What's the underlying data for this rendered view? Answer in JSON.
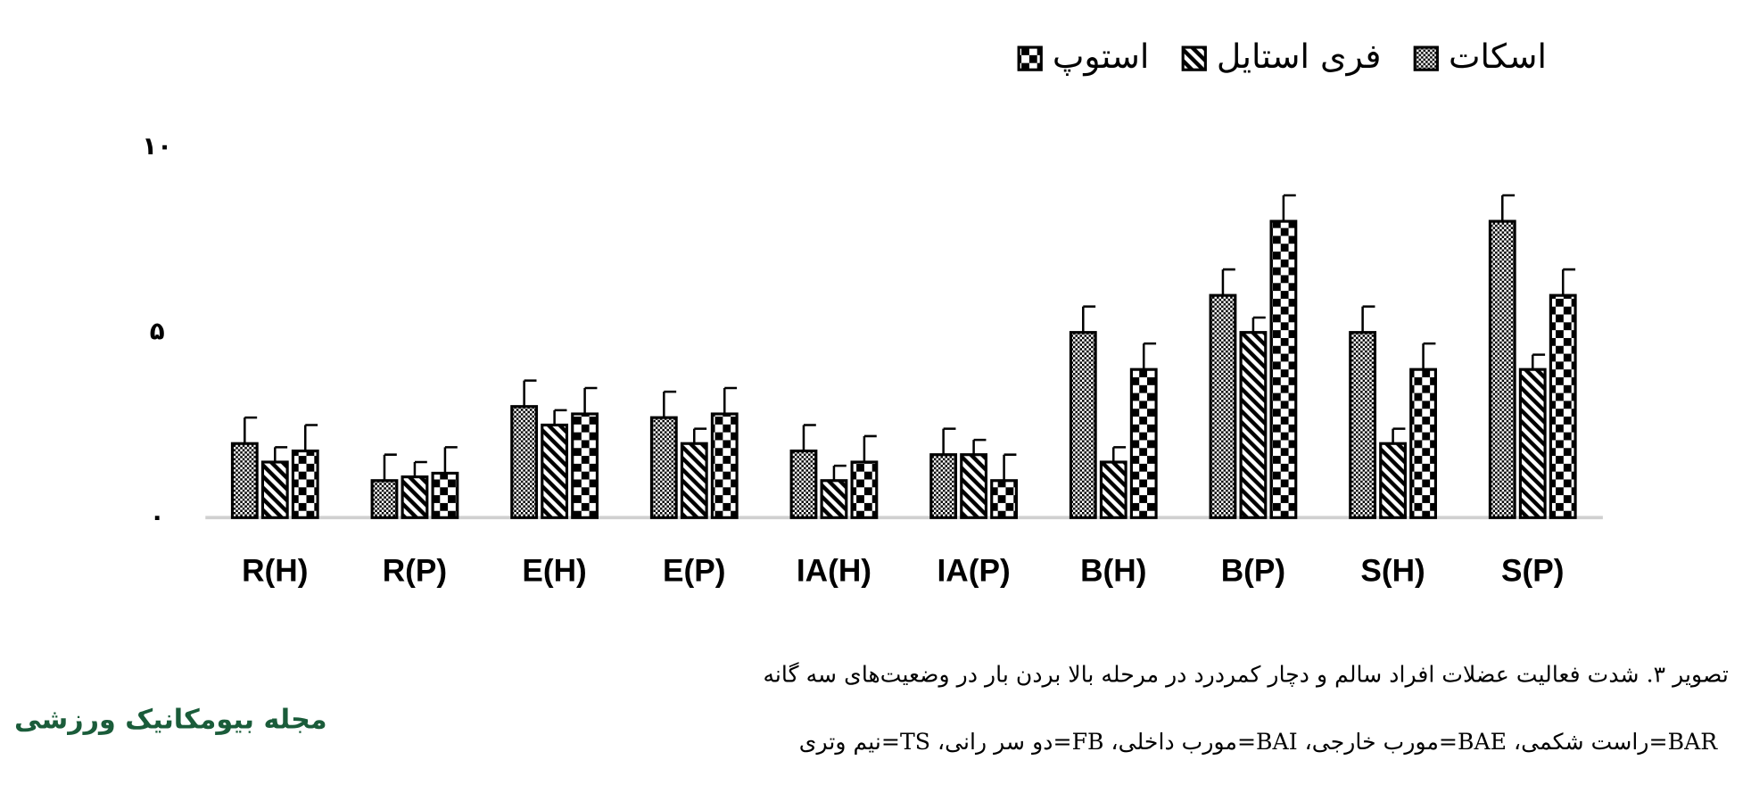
{
  "chart_data": {
    "type": "bar",
    "categories": [
      "R(H)",
      "R(P)",
      "E(H)",
      "E(P)",
      "IA(H)",
      "IA(P)",
      "B(H)",
      "B(P)",
      "S(H)",
      "S(P)"
    ],
    "series": [
      {
        "name": "اسکات",
        "color": "#000000",
        "pattern": "dots",
        "values": [
          2.0,
          1.0,
          3.0,
          2.7,
          1.8,
          1.7,
          5.0,
          6.0,
          5.0,
          8.0
        ],
        "errors": [
          0.7,
          0.7,
          0.7,
          0.7,
          0.7,
          0.7,
          0.7,
          0.7,
          0.7,
          0.7
        ]
      },
      {
        "name": "فری استایل",
        "color": "#000000",
        "pattern": "hatch",
        "values": [
          1.5,
          1.1,
          2.5,
          2.0,
          1.0,
          1.7,
          1.5,
          5.0,
          2.0,
          4.0
        ],
        "errors": [
          0.4,
          0.4,
          0.4,
          0.4,
          0.4,
          0.4,
          0.4,
          0.4,
          0.4,
          0.4
        ]
      },
      {
        "name": "استوپ",
        "color": "#000000",
        "pattern": "checker",
        "values": [
          1.8,
          1.2,
          2.8,
          2.8,
          1.5,
          1.0,
          4.0,
          8.0,
          4.0,
          6.0
        ],
        "errors": [
          0.7,
          0.7,
          0.7,
          0.7,
          0.7,
          0.7,
          0.7,
          0.7,
          0.7,
          0.7
        ]
      }
    ],
    "ylim": [
      0,
      10
    ],
    "yticks": [
      {
        "value": 0,
        "label": "٠"
      },
      {
        "value": 5,
        "label": "۵"
      },
      {
        "value": 10,
        "label": "۱۰"
      }
    ],
    "grid": false,
    "legend": "top",
    "caption": "تصویر ۳. شدت فعالیت عضلات افراد سالم و دچار کمردرد در مرحله بالا بردن بار در وضعیت‌های سه گانه",
    "abbreviations": "BAR=راست شکمی، BAE=مورب خارجی، BAI=مورب داخلی، FB=دو سر رانی، TS=نیم وتری",
    "logo": "مجله بیومکانیک ورزشی"
  }
}
